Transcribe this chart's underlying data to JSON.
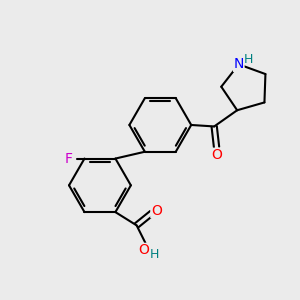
{
  "background_color": "#ebebeb",
  "bond_color": "#000000",
  "atom_colors": {
    "F": "#cc00cc",
    "O": "#ff0000",
    "N": "#0000ff",
    "H_teal": "#008080",
    "C": "#000000"
  },
  "figsize": [
    3.0,
    3.0
  ],
  "dpi": 100
}
